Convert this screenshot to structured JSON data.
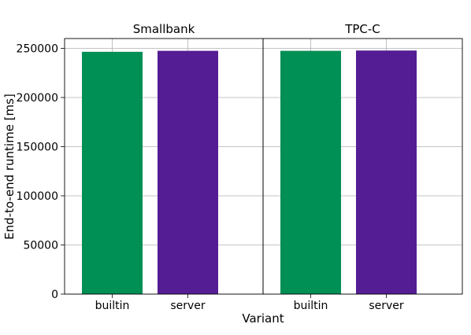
{
  "chart_data": [
    {
      "type": "bar",
      "title": "Smallbank",
      "categories": [
        "builtin",
        "server"
      ],
      "values": [
        246500,
        247500
      ],
      "colors": [
        "#008f54",
        "#541d94"
      ],
      "xlabel": "Variant",
      "ylabel": "End-to-end runtime [ms]",
      "ylim": [
        0,
        260000
      ],
      "yticks": [
        0,
        50000,
        100000,
        150000,
        200000,
        250000
      ],
      "grid": true
    },
    {
      "type": "bar",
      "title": "TPC-C",
      "categories": [
        "builtin",
        "server"
      ],
      "values": [
        247500,
        247800
      ],
      "colors": [
        "#008f54",
        "#541d94"
      ],
      "xlabel": "Variant",
      "ylabel": "End-to-end runtime [ms]",
      "ylim": [
        0,
        260000
      ],
      "yticks": [
        0,
        50000,
        100000,
        150000,
        200000,
        250000
      ],
      "grid": true
    }
  ]
}
